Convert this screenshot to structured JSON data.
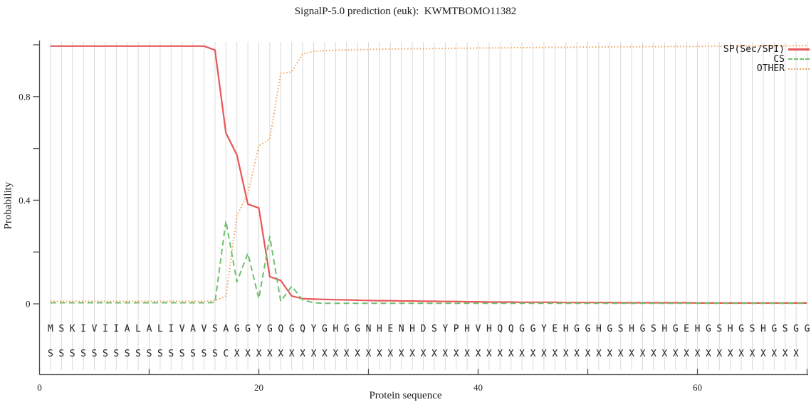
{
  "chart_data": {
    "type": "line",
    "title": "SignalP-5.0 prediction (euk):  KWMTBOMO11382",
    "xlabel": "Protein sequence",
    "ylabel": "Probability",
    "xlim": [
      0,
      70
    ],
    "ylim": [
      0,
      1
    ],
    "grid": "vertical gridline at every residue position 1-70",
    "legend_position": "top-right",
    "grid_color": "#d9d9d9",
    "axis_color": "#4d4d4d",
    "text_color": "#1a1a1a",
    "axes": {
      "x": {
        "label": "Protein sequence",
        "ticks": [
          {
            "v": 0,
            "label": "0"
          },
          {
            "v": 10,
            "label": ""
          },
          {
            "v": 20,
            "label": "20"
          },
          {
            "v": 30,
            "label": ""
          },
          {
            "v": 40,
            "label": "40"
          },
          {
            "v": 50,
            "label": ""
          },
          {
            "v": 60,
            "label": "60"
          },
          {
            "v": 70,
            "label": ""
          }
        ]
      },
      "y": {
        "label": "Probability",
        "ticks": [
          {
            "v": 0,
            "label": "0"
          },
          {
            "v": 0.2,
            "label": ""
          },
          {
            "v": 0.4,
            "label": "0.4"
          },
          {
            "v": 0.6,
            "label": ""
          },
          {
            "v": 0.8,
            "label": "0.8"
          },
          {
            "v": 1.0,
            "label": ""
          }
        ]
      }
    },
    "x": [
      1,
      2,
      3,
      4,
      5,
      6,
      7,
      8,
      9,
      10,
      11,
      12,
      13,
      14,
      15,
      16,
      17,
      18,
      19,
      20,
      21,
      22,
      23,
      24,
      25,
      26,
      27,
      28,
      29,
      30,
      31,
      32,
      33,
      34,
      35,
      36,
      37,
      38,
      39,
      40,
      41,
      42,
      43,
      44,
      45,
      46,
      47,
      48,
      49,
      50,
      51,
      52,
      53,
      54,
      55,
      56,
      57,
      58,
      59,
      60,
      61,
      62,
      63,
      64,
      65,
      66,
      67,
      68,
      69,
      70
    ],
    "series": [
      {
        "name": "SP(Sec/SPI)",
        "style": "solid",
        "color": "#e8575a",
        "values": [
          0.995,
          0.995,
          0.995,
          0.995,
          0.995,
          0.995,
          0.995,
          0.995,
          0.995,
          0.995,
          0.995,
          0.995,
          0.995,
          0.995,
          0.995,
          0.98,
          0.66,
          0.575,
          0.385,
          0.37,
          0.105,
          0.09,
          0.03,
          0.02,
          0.018,
          0.017,
          0.016,
          0.015,
          0.014,
          0.013,
          0.012,
          0.012,
          0.011,
          0.011,
          0.01,
          0.01,
          0.009,
          0.009,
          0.008,
          0.008,
          0.007,
          0.007,
          0.007,
          0.006,
          0.006,
          0.006,
          0.006,
          0.005,
          0.005,
          0.005,
          0.005,
          0.005,
          0.004,
          0.004,
          0.004,
          0.004,
          0.004,
          0.004,
          0.004,
          0.003,
          0.003,
          0.003,
          0.003,
          0.003,
          0.003,
          0.003,
          0.003,
          0.003,
          0.003,
          0.003
        ]
      },
      {
        "name": "CS",
        "style": "dashed",
        "color": "#70bf6e",
        "values": [
          0.004,
          0.004,
          0.004,
          0.004,
          0.004,
          0.004,
          0.004,
          0.004,
          0.004,
          0.004,
          0.004,
          0.004,
          0.004,
          0.004,
          0.004,
          0.005,
          0.32,
          0.085,
          0.195,
          0.02,
          0.26,
          0.01,
          0.068,
          0.015,
          0.004,
          0.002,
          0.002,
          0.002,
          0.002,
          0.002,
          0.002,
          0.002,
          0.002,
          0.002,
          0.002,
          0.002,
          0.002,
          0.002,
          0.002,
          0.002,
          0.002,
          0.002,
          0.002,
          0.002,
          0.002,
          0.002,
          0.002,
          0.002,
          0.002,
          0.002,
          0.002,
          0.002,
          0.002,
          0.002,
          0.002,
          0.002,
          0.002,
          0.002,
          0.002,
          0.002,
          0.002,
          0.002,
          0.002,
          0.002,
          0.002,
          0.002,
          0.002,
          0.002,
          0.002,
          0.002
        ]
      },
      {
        "name": "OTHER",
        "style": "dotted",
        "color": "#f3a65f",
        "values": [
          0.01,
          0.01,
          0.01,
          0.01,
          0.01,
          0.01,
          0.01,
          0.01,
          0.01,
          0.01,
          0.01,
          0.01,
          0.01,
          0.01,
          0.01,
          0.012,
          0.03,
          0.34,
          0.425,
          0.61,
          0.635,
          0.89,
          0.895,
          0.965,
          0.975,
          0.977,
          0.979,
          0.98,
          0.981,
          0.982,
          0.983,
          0.984,
          0.984,
          0.985,
          0.985,
          0.986,
          0.986,
          0.987,
          0.987,
          0.988,
          0.988,
          0.988,
          0.989,
          0.989,
          0.989,
          0.99,
          0.99,
          0.99,
          0.991,
          0.991,
          0.991,
          0.992,
          0.992,
          0.992,
          0.993,
          0.993,
          0.993,
          0.994,
          0.994,
          0.994,
          0.995,
          0.995,
          0.995,
          0.995,
          0.996,
          0.996,
          0.996,
          0.996,
          0.997,
          0.997
        ]
      }
    ],
    "sequence_row": "MSKIVIIALALIVAVSAGGYGQGQYGHGGNHENHDSYPHVHQQGGYEHGGHGSHGSHGEHGSHGSHGSGG",
    "marks_row": "SSSSSSSSSSSSSSSSCXXXXXXXXXXXXXXXXXXXXXXXXXXXXXXXXXXXXXXXXXXXXXXXXXXXX"
  }
}
